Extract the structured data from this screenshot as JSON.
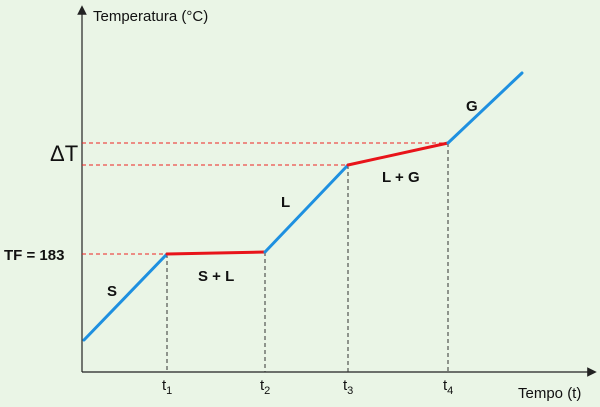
{
  "axes": {
    "y_label": "Temperatura (°C)",
    "x_label": "Tempo (t)"
  },
  "markers": {
    "delta_t": "ΔT",
    "tf": "TF = 183"
  },
  "phases": [
    "S",
    "S + L",
    "L",
    "L + G",
    "G"
  ],
  "times": [
    {
      "base": "t",
      "sub": "1"
    },
    {
      "base": "t",
      "sub": "2"
    },
    {
      "base": "t",
      "sub": "3"
    },
    {
      "base": "t",
      "sub": "4"
    }
  ]
}
